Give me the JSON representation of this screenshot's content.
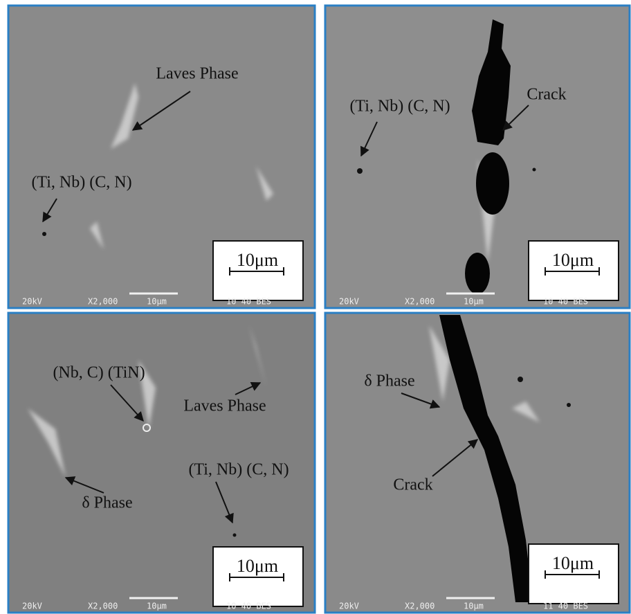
{
  "panels": [
    {
      "labels": [
        "Laves Phase",
        "(Ti, Nb) (C, N)"
      ],
      "scale_bar": "10μm",
      "footer": [
        "20kV",
        "X2,000",
        "10μm",
        "10 40 BES"
      ]
    },
    {
      "labels": [
        "(Ti, Nb) (C, N)",
        "Crack"
      ],
      "scale_bar": "10μm",
      "footer": [
        "20kV",
        "X2,000",
        "10μm",
        "10 40 BES"
      ]
    },
    {
      "labels": [
        "(Nb, C) (TiN)",
        "Laves Phase",
        "δ Phase",
        "(Ti, Nb) (C, N)"
      ],
      "scale_bar": "10μm",
      "footer": [
        "20kV",
        "X2,000",
        "10μm",
        "10 40 BES"
      ]
    },
    {
      "labels": [
        "δ Phase",
        "Crack"
      ],
      "scale_bar": "10μm",
      "footer": [
        "20kV",
        "X2,000",
        "10μm",
        "11 40 BES"
      ]
    }
  ]
}
